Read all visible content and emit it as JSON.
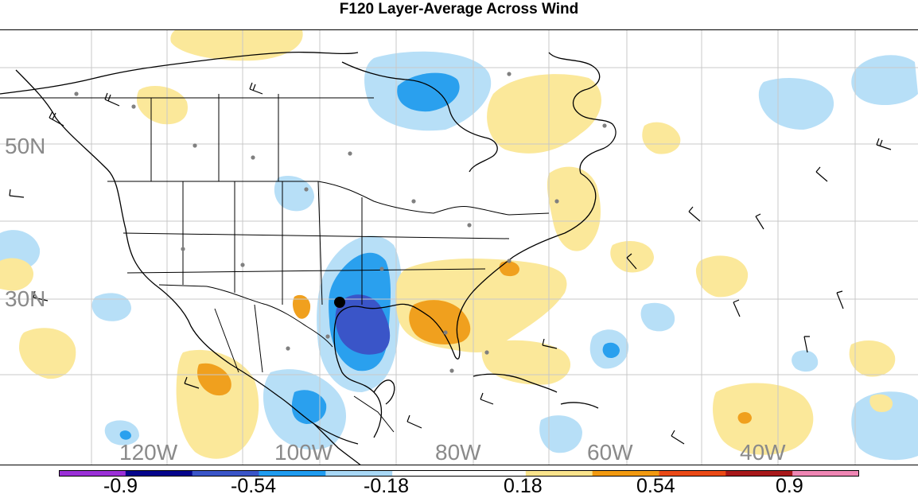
{
  "title": "F120 Layer-Average Across Wind",
  "lat_labels": {
    "lat50": "50N",
    "lat30": "30N"
  },
  "lon_labels": {
    "w120": "120W",
    "w100": "100W",
    "w80": "80W",
    "w60": "60W",
    "w40": "40W"
  },
  "colorbar": {
    "colors": [
      "#9b30d8",
      "#05058c",
      "#3a55c8",
      "#1f9cf0",
      "#a8d8f6",
      "#ffffff",
      "#ffffff",
      "#fae48c",
      "#f29a10",
      "#eb4a16",
      "#a8181a",
      "#ef86b4"
    ],
    "labels": [
      "-0.9",
      "-0.54",
      "-0.18",
      "0.18",
      "0.54",
      "0.9"
    ]
  },
  "colors": {
    "negative_light": "#b7dff7",
    "negative_mid": "#2aa0ee",
    "negative_strong": "#3a55c8",
    "positive_light": "#fbe89a",
    "positive_mid": "#f0a01e",
    "coast": "#000000",
    "grid": "#c8c8c8",
    "station_dot": "#808080"
  },
  "icons": {
    "storm_center": "storm-center-icon",
    "wind_barb": "wind-barb-icon"
  }
}
